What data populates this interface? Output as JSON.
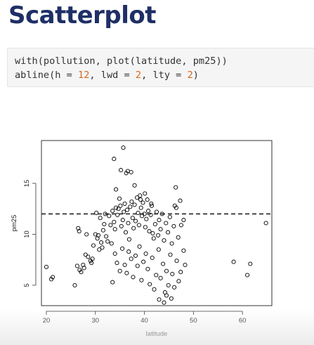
{
  "slide": {
    "title": "Scatterplot"
  },
  "code": {
    "line1": "with(pollution, plot(latitude, pm25))",
    "line2": {
      "pre": "abline(h = ",
      "h": "12",
      "mid1": ", lwd = ",
      "lwd": "2",
      "mid2": ", lty = ",
      "lty": "2",
      "post": ")"
    }
  },
  "chart_data": {
    "type": "scatter",
    "xlabel": "latitude",
    "ylabel": "pm25",
    "xlim": [
      19,
      66
    ],
    "ylim": [
      3,
      19.2
    ],
    "xticks": [
      20,
      30,
      40,
      50,
      60
    ],
    "yticks": [
      5,
      10,
      15
    ],
    "hline": {
      "y": 12,
      "lty": "dashed",
      "lwd": 2
    },
    "marker": "open-circle",
    "color": "#000000",
    "points": [
      [
        20.0,
        6.8
      ],
      [
        21.0,
        5.6
      ],
      [
        21.3,
        5.8
      ],
      [
        25.8,
        5.0
      ],
      [
        26.3,
        6.9
      ],
      [
        26.5,
        10.6
      ],
      [
        26.7,
        10.3
      ],
      [
        26.8,
        6.5
      ],
      [
        27.1,
        6.3
      ],
      [
        27.5,
        7.0
      ],
      [
        27.7,
        6.7
      ],
      [
        28.0,
        8.0
      ],
      [
        28.2,
        10.0
      ],
      [
        28.5,
        7.8
      ],
      [
        29.0,
        7.4
      ],
      [
        29.2,
        7.2
      ],
      [
        29.4,
        7.6
      ],
      [
        29.6,
        8.9
      ],
      [
        30.0,
        10.0
      ],
      [
        30.2,
        12.1
      ],
      [
        30.4,
        9.6
      ],
      [
        30.6,
        9.9
      ],
      [
        30.8,
        8.5
      ],
      [
        31.0,
        11.6
      ],
      [
        31.2,
        9.2
      ],
      [
        31.4,
        8.7
      ],
      [
        31.6,
        10.4
      ],
      [
        31.8,
        11.0
      ],
      [
        32.0,
        12.0
      ],
      [
        32.2,
        9.8
      ],
      [
        32.5,
        9.3
      ],
      [
        32.8,
        11.8
      ],
      [
        33.1,
        10.9
      ],
      [
        33.3,
        9.1
      ],
      [
        33.5,
        12.3
      ],
      [
        33.8,
        11.2
      ],
      [
        34.0,
        10.5
      ],
      [
        34.2,
        12.6
      ],
      [
        34.5,
        11.9
      ],
      [
        34.7,
        12.5
      ],
      [
        34.9,
        13.5
      ],
      [
        35.1,
        12.8
      ],
      [
        35.3,
        10.8
      ],
      [
        35.6,
        11.4
      ],
      [
        35.8,
        12.2
      ],
      [
        36.0,
        13.0
      ],
      [
        36.2,
        10.2
      ],
      [
        36.5,
        12.4
      ],
      [
        36.7,
        11.1
      ],
      [
        36.9,
        9.5
      ],
      [
        37.1,
        12.7
      ],
      [
        37.4,
        13.2
      ],
      [
        37.6,
        11.6
      ],
      [
        37.8,
        10.6
      ],
      [
        38.0,
        12.9
      ],
      [
        38.2,
        11.3
      ],
      [
        38.5,
        13.6
      ],
      [
        38.7,
        12.1
      ],
      [
        38.9,
        10.9
      ],
      [
        39.1,
        13.8
      ],
      [
        39.3,
        12.6
      ],
      [
        39.5,
        11.8
      ],
      [
        39.7,
        13.1
      ],
      [
        40.0,
        12.0
      ],
      [
        40.2,
        10.7
      ],
      [
        40.4,
        11.5
      ],
      [
        40.6,
        13.4
      ],
      [
        40.8,
        12.3
      ],
      [
        41.0,
        10.3
      ],
      [
        41.3,
        11.9
      ],
      [
        41.5,
        12.8
      ],
      [
        41.7,
        10.1
      ],
      [
        41.9,
        9.6
      ],
      [
        42.2,
        11.0
      ],
      [
        42.5,
        12.2
      ],
      [
        42.8,
        9.9
      ],
      [
        43.0,
        11.4
      ],
      [
        43.3,
        10.5
      ],
      [
        43.6,
        12.0
      ],
      [
        44.0,
        9.4
      ],
      [
        44.4,
        11.1
      ],
      [
        44.8,
        10.2
      ],
      [
        45.2,
        11.7
      ],
      [
        45.6,
        9.1
      ],
      [
        46.0,
        10.8
      ],
      [
        46.5,
        12.6
      ],
      [
        46.9,
        9.7
      ],
      [
        47.5,
        10.9
      ],
      [
        33.5,
        5.3
      ],
      [
        34.0,
        8.1
      ],
      [
        34.4,
        7.2
      ],
      [
        35.0,
        6.4
      ],
      [
        35.5,
        8.6
      ],
      [
        36.0,
        7.0
      ],
      [
        36.4,
        6.2
      ],
      [
        36.8,
        8.3
      ],
      [
        37.3,
        7.6
      ],
      [
        37.7,
        5.8
      ],
      [
        38.2,
        7.9
      ],
      [
        38.6,
        6.9
      ],
      [
        39.0,
        8.8
      ],
      [
        39.4,
        5.5
      ],
      [
        39.8,
        7.3
      ],
      [
        40.3,
        8.1
      ],
      [
        40.7,
        6.6
      ],
      [
        41.1,
        5.1
      ],
      [
        41.6,
        7.7
      ],
      [
        42.0,
        4.6
      ],
      [
        42.4,
        6.0
      ],
      [
        42.9,
        8.5
      ],
      [
        43.3,
        5.7
      ],
      [
        43.8,
        7.1
      ],
      [
        44.2,
        4.3
      ],
      [
        44.5,
        6.4
      ],
      [
        44.9,
        5.0
      ],
      [
        45.3,
        8.0
      ],
      [
        45.7,
        6.1
      ],
      [
        46.1,
        4.8
      ],
      [
        46.6,
        7.4
      ],
      [
        47.0,
        5.4
      ],
      [
        47.4,
        6.3
      ],
      [
        48.0,
        8.4
      ],
      [
        48.3,
        7.0
      ],
      [
        44.5,
        4.0
      ],
      [
        43.0,
        3.6
      ],
      [
        44.0,
        3.3
      ],
      [
        45.5,
        3.7
      ],
      [
        33.8,
        17.4
      ],
      [
        35.7,
        18.5
      ],
      [
        35.2,
        16.3
      ],
      [
        36.3,
        16.0
      ],
      [
        36.6,
        16.2
      ],
      [
        37.3,
        16.1
      ],
      [
        34.2,
        14.4
      ],
      [
        38.0,
        14.8
      ],
      [
        39.2,
        13.4
      ],
      [
        40.1,
        14.0
      ],
      [
        41.4,
        13.0
      ],
      [
        46.4,
        14.6
      ],
      [
        46.2,
        12.8
      ],
      [
        47.3,
        13.3
      ],
      [
        48.0,
        11.4
      ],
      [
        58.2,
        7.3
      ],
      [
        61.0,
        6.0
      ],
      [
        61.6,
        7.1
      ],
      [
        64.8,
        11.1
      ]
    ]
  }
}
